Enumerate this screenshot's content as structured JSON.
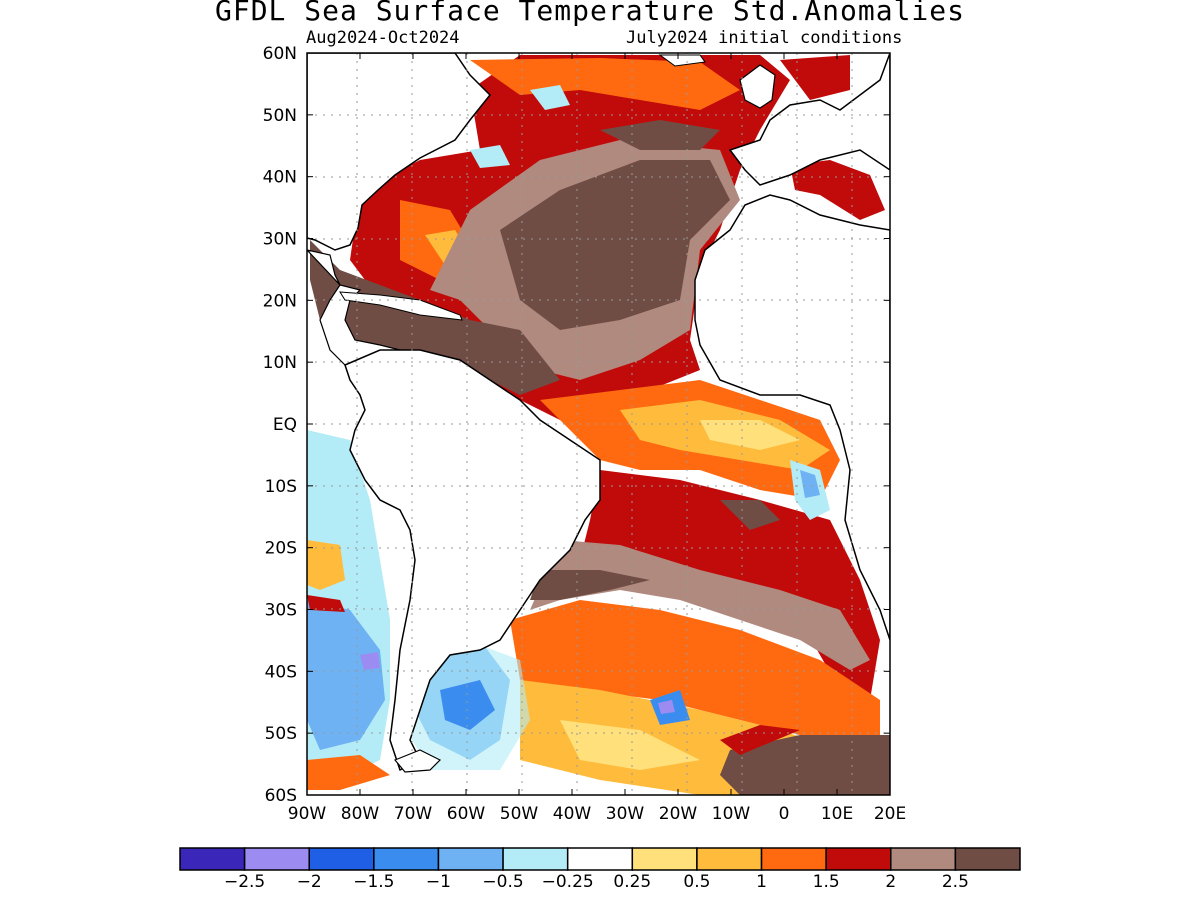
{
  "title": "GFDL Sea Surface Temperature Std.Anomalies",
  "subtitle_left": "Aug2024-Oct2024",
  "subtitle_right": "July2024 initial conditions",
  "map": {
    "lat_range": [
      -60,
      60
    ],
    "lon_range": [
      -90,
      20
    ],
    "grid_lines": "dotted",
    "lat_ticks": [
      "60N",
      "50N",
      "40N",
      "30N",
      "20N",
      "10N",
      "EQ",
      "10S",
      "20S",
      "30S",
      "40S",
      "50S",
      "60S"
    ],
    "lon_ticks": [
      "90W",
      "80W",
      "70W",
      "60W",
      "50W",
      "40W",
      "30W",
      "20W",
      "10W",
      "0",
      "10E",
      "20E"
    ]
  },
  "colorbar": {
    "colors": [
      "#3a26b8",
      "#9c8cf2",
      "#1f5fe6",
      "#3b8cef",
      "#6eb2f4",
      "#b3ecf6",
      "#ffffff",
      "#ffe07a",
      "#ffbb3c",
      "#ff6a10",
      "#c10a0a",
      "#b08a7f",
      "#704d44"
    ],
    "labels": [
      "-2.5",
      "-2",
      "-1.5",
      "-1",
      "-0.5",
      "-0.25",
      "0.25",
      "0.5",
      "1",
      "1.5",
      "2",
      "2.5"
    ]
  }
}
